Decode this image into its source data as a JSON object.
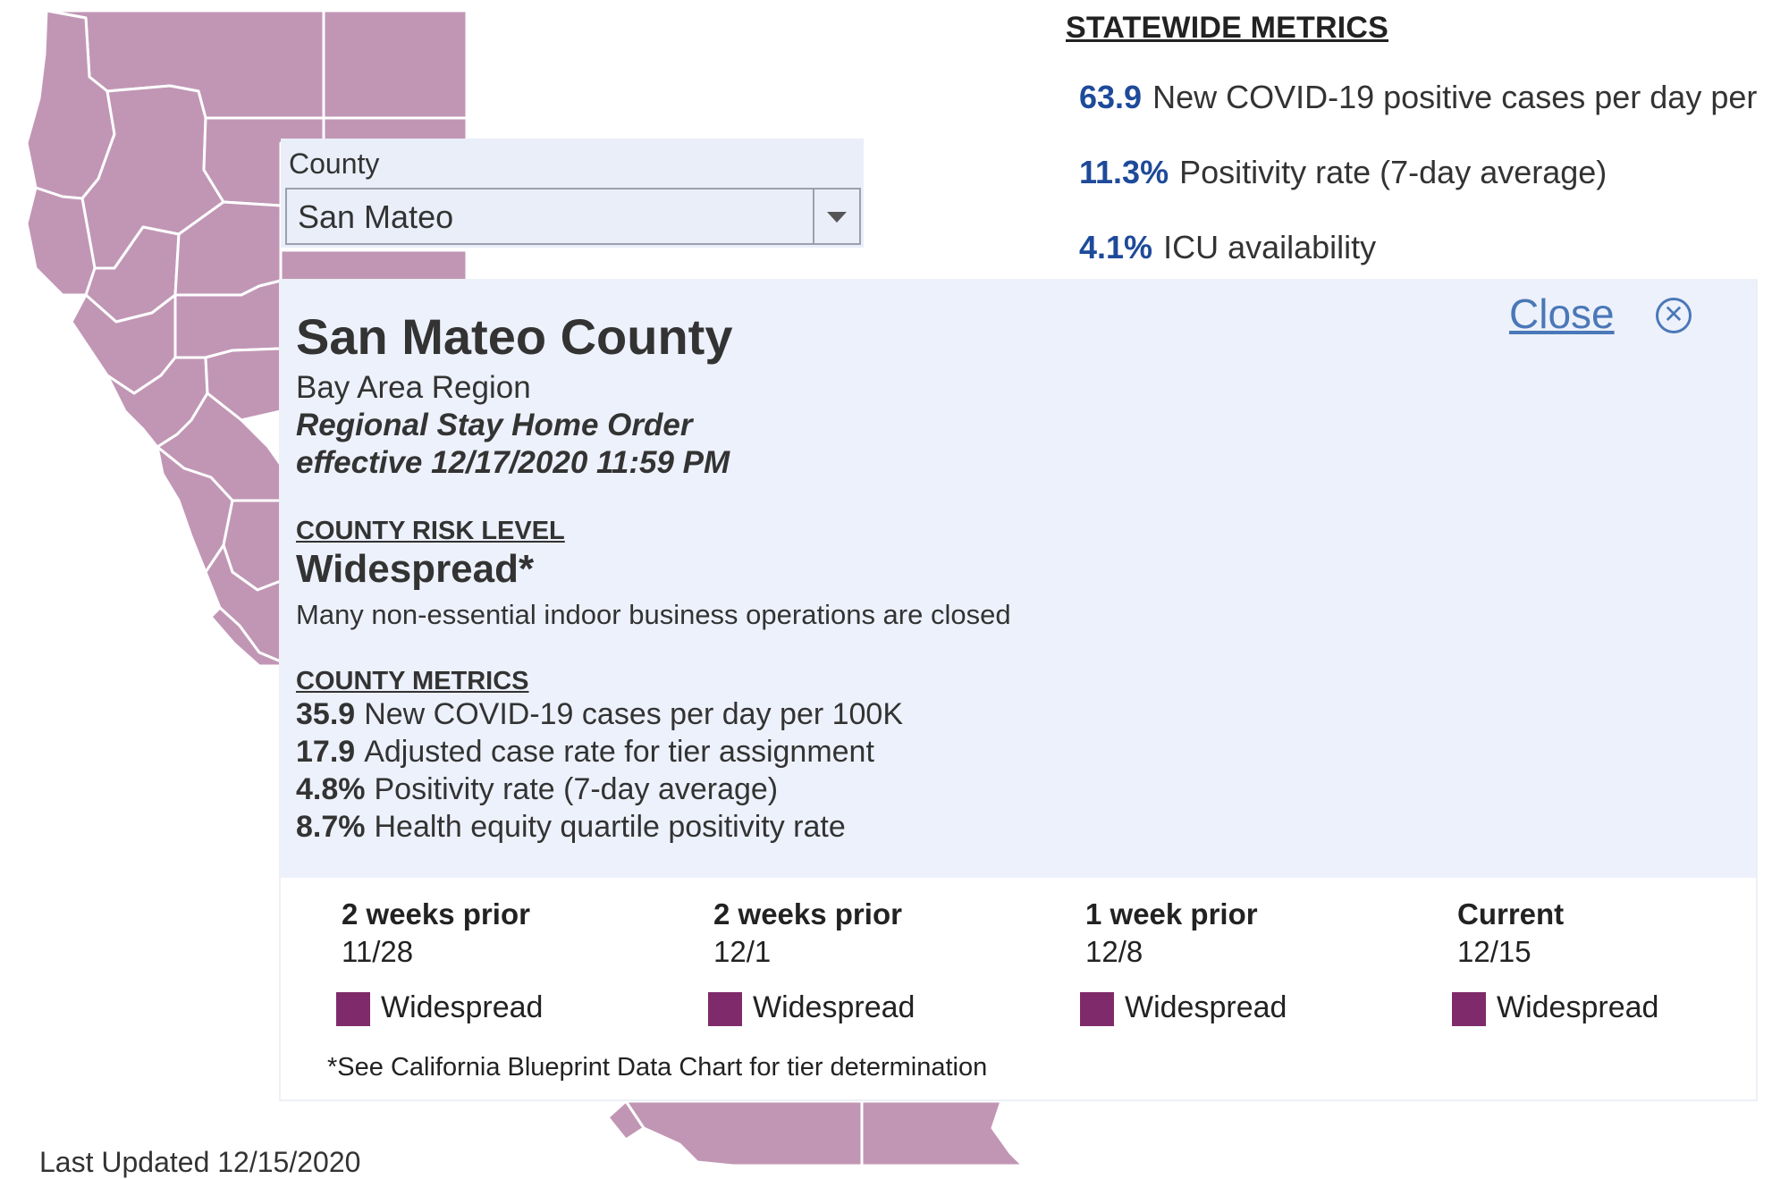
{
  "statewide": {
    "title": "STATEWIDE METRICS",
    "metrics": [
      {
        "value": "63.9",
        "label": "New COVID-19 positive cases per day per"
      },
      {
        "value": "11.3%",
        "label": "Positivity rate (7-day average)"
      },
      {
        "value": "4.1%",
        "label": "ICU availability"
      }
    ]
  },
  "county_select": {
    "label": "County",
    "value": "San Mateo"
  },
  "popup": {
    "close_label": "Close",
    "county_name": "San Mateo County",
    "region": "Bay Area Region",
    "order_line1": "Regional Stay Home Order",
    "order_line2": "effective 12/17/2020 11:59 PM",
    "risk_heading": "COUNTY RISK LEVEL",
    "risk_level": "Widespread*",
    "risk_description": "Many non-essential indoor business operations are closed",
    "metrics_heading": "COUNTY METRICS",
    "metrics": [
      {
        "value": "35.9",
        "label": "New COVID-19 cases per day per 100K"
      },
      {
        "value": "17.9",
        "label": "Adjusted case rate for tier assignment"
      },
      {
        "value": "4.8%",
        "label": "Positivity rate (7-day average)"
      },
      {
        "value": "8.7%",
        "label": "Health equity quartile positivity rate"
      }
    ],
    "history": [
      {
        "label": "2 weeks prior",
        "date": "11/28",
        "status": "Widespread"
      },
      {
        "label": "2 weeks prior",
        "date": "12/1",
        "status": "Widespread"
      },
      {
        "label": "1 week prior",
        "date": "12/8",
        "status": "Widespread"
      },
      {
        "label": "Current",
        "date": "12/15",
        "status": "Widespread"
      }
    ],
    "footnote": "*See California Blueprint Data Chart for tier determination"
  },
  "last_updated": "Last Updated 12/15/2020",
  "colors": {
    "map_fill": "#c196b5",
    "widespread": "#7f2b6b",
    "metric_value": "#1e4a9a",
    "link": "#4a78b8",
    "panel_bg": "#edf1fb"
  }
}
